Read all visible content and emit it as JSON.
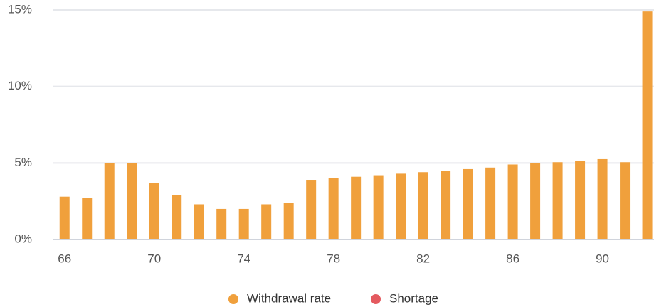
{
  "chart_data": {
    "type": "bar",
    "x": [
      66,
      67,
      68,
      69,
      70,
      71,
      72,
      73,
      74,
      75,
      76,
      77,
      78,
      79,
      80,
      81,
      82,
      83,
      84,
      85,
      86,
      87,
      88,
      89,
      90,
      91,
      92
    ],
    "series": [
      {
        "name": "Withdrawal rate",
        "color": "#f0a03c",
        "values": [
          2.8,
          2.7,
          5.0,
          5.0,
          3.7,
          2.9,
          2.3,
          2.0,
          2.0,
          2.3,
          2.4,
          3.9,
          4.0,
          4.1,
          4.2,
          4.3,
          4.4,
          4.5,
          4.6,
          4.7,
          4.9,
          5.0,
          5.05,
          5.15,
          5.25,
          5.05,
          14.9
        ]
      },
      {
        "name": "Shortage",
        "color": "#e45a5f",
        "values": [
          null,
          null,
          null,
          null,
          null,
          null,
          null,
          null,
          null,
          null,
          null,
          null,
          null,
          null,
          null,
          null,
          null,
          null,
          null,
          null,
          null,
          null,
          null,
          null,
          null,
          null,
          null
        ]
      }
    ],
    "xlim": [
      65.5,
      92.3
    ],
    "xticks": [
      66,
      70,
      74,
      78,
      82,
      86,
      90
    ],
    "ylim": [
      0,
      15
    ],
    "yticks": [
      {
        "value": 0,
        "label": "0%"
      },
      {
        "value": 5,
        "label": "5%"
      },
      {
        "value": 10,
        "label": "10%"
      },
      {
        "value": 15,
        "label": "15%"
      }
    ],
    "grid": true
  }
}
